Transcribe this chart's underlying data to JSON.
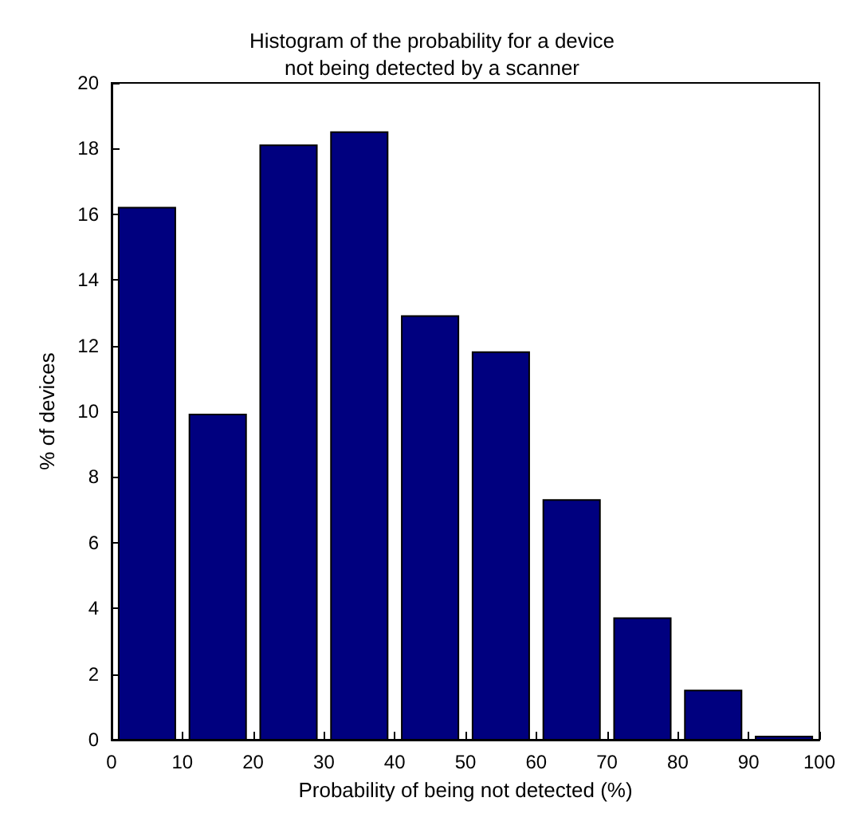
{
  "chart_data": {
    "type": "histogram",
    "title": "Histogram of the probability for a device\nnot being detected by a scanner",
    "xlabel": "Probability of being not detected (%)",
    "ylabel": "% of devices",
    "bins": [
      0,
      10,
      20,
      30,
      40,
      50,
      60,
      70,
      80,
      90,
      100
    ],
    "values": [
      16.2,
      9.9,
      18.1,
      18.5,
      12.9,
      11.8,
      7.3,
      3.7,
      1.5,
      0.1
    ],
    "color": "#00007f",
    "xlim": [
      0,
      100
    ],
    "xticks": [
      0,
      10,
      20,
      30,
      40,
      50,
      60,
      70,
      80,
      90,
      100
    ],
    "ylim": [
      0,
      20
    ],
    "yticks": [
      0,
      2,
      4,
      6,
      8,
      10,
      12,
      14,
      16,
      18,
      20
    ],
    "grid": false
  }
}
